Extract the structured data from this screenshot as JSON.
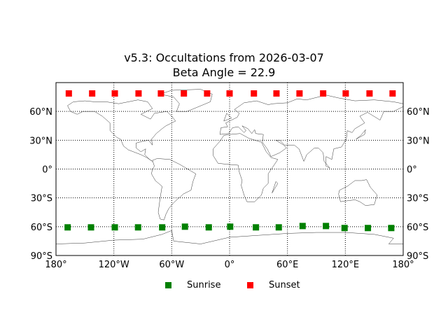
{
  "title_line1": "v5.3: Occultations from 2026-03-07",
  "title_line2": "Beta Angle = 22.9",
  "chart_data": {
    "type": "scatter",
    "projection": "equirectangular",
    "title": "v5.3: Occultations from 2026-03-07\nBeta Angle = 22.9",
    "xlim": [
      -180,
      180
    ],
    "ylim": [
      -90,
      90
    ],
    "grid": true,
    "legend_placement": "bottom-center",
    "x_ticks": [
      -180,
      -120,
      -60,
      0,
      60,
      120,
      180
    ],
    "x_tick_labels": [
      "180°",
      "120°W",
      "60°W",
      "0°",
      "60°E",
      "120°E",
      "180°"
    ],
    "y_ticks": [
      60,
      30,
      0,
      -30,
      -60,
      -90
    ],
    "y_tick_labels": [
      "60°N",
      "30°N",
      "0°",
      "30°S",
      "60°S",
      "90°S"
    ],
    "series": [
      {
        "name": "Sunrise",
        "color": "#008000",
        "marker": "square",
        "lon": [
          -167.9,
          -143.7,
          -119.0,
          -94.9,
          -69.9,
          -46.3,
          -21.6,
          0.6,
          27.3,
          51.0,
          75.7,
          99.9,
          119.2,
          143.4,
          167.6
        ],
        "lat": [
          -60.7,
          -60.7,
          -60.7,
          -60.7,
          -60.7,
          -60.0,
          -60.7,
          -60.0,
          -60.7,
          -60.7,
          -59.3,
          -59.3,
          -61.4,
          -61.4,
          -61.4
        ]
      },
      {
        "name": "Sunset",
        "color": "#ff0000",
        "marker": "square",
        "lon": [
          -166.7,
          -142.5,
          -119.0,
          -94.4,
          -71.2,
          -47.4,
          -23.3,
          0.0,
          25.2,
          48.6,
          72.5,
          97.0,
          120.4,
          145.1,
          169.0
        ],
        "lat": [
          78.7,
          78.7,
          78.7,
          78.7,
          78.7,
          78.7,
          78.7,
          78.7,
          78.7,
          78.7,
          78.7,
          78.7,
          78.7,
          78.7,
          78.7
        ]
      }
    ]
  }
}
